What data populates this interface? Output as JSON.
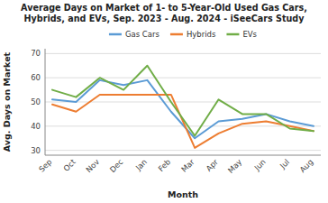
{
  "chart_data": {
    "type": "line",
    "title": "Average Days on Market of 1- to 5-Year-Old Used Gas Cars,\nHybrids, and EVs, Sep. 2023 - Aug. 2024 - iSeeCars Study",
    "xlabel": "Month",
    "ylabel": "Avg. Days on Market",
    "categories": [
      "Sep",
      "Oct",
      "Nov",
      "Dec",
      "Jan",
      "Feb",
      "Mar",
      "Apr",
      "May",
      "Jun",
      "Jul",
      "Aug"
    ],
    "series": [
      {
        "name": "Gas Cars",
        "color": "#5b9bd5",
        "values": [
          51,
          50,
          59,
          57,
          59,
          46,
          35,
          42,
          43,
          45,
          42,
          40
        ]
      },
      {
        "name": "Hybrids",
        "color": "#ed7d31",
        "values": [
          49,
          46,
          53,
          53,
          53,
          53,
          31,
          37,
          41,
          42,
          40,
          38
        ]
      },
      {
        "name": "EVs",
        "color": "#70ad47",
        "values": [
          55,
          52,
          60,
          55,
          65,
          50,
          36,
          51,
          45,
          45,
          39,
          38
        ]
      }
    ],
    "ylim": [
      28,
      72
    ],
    "yticks": [
      30,
      40,
      50,
      60,
      70
    ],
    "grid": true,
    "legend": "top"
  }
}
